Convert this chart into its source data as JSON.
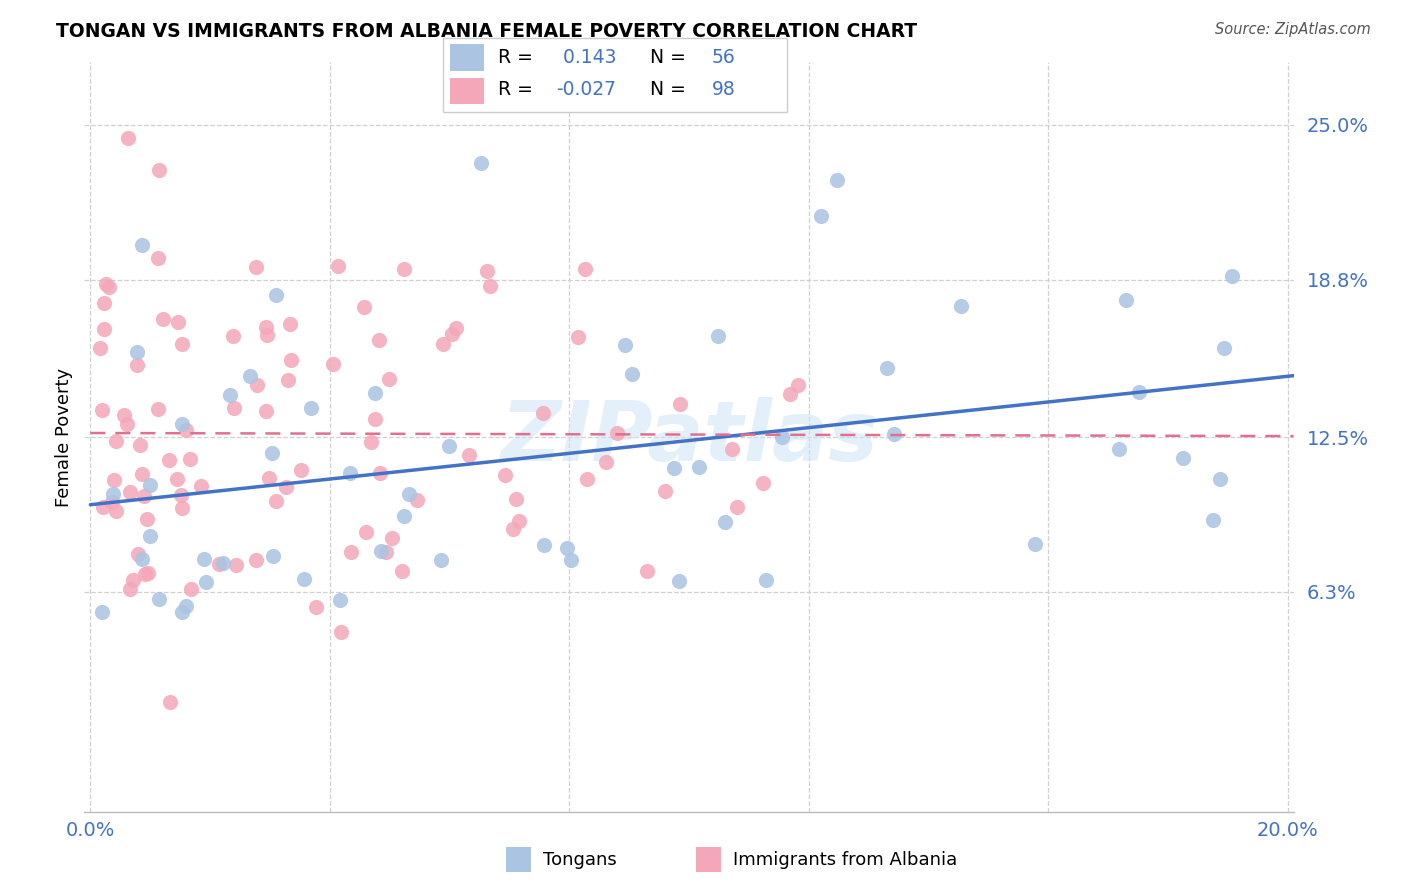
{
  "title": "TONGAN VS IMMIGRANTS FROM ALBANIA FEMALE POVERTY CORRELATION CHART",
  "source": "Source: ZipAtlas.com",
  "ylabel": "Female Poverty",
  "ytick_vals": [
    0.063,
    0.125,
    0.188,
    0.25
  ],
  "ytick_labels": [
    "6.3%",
    "12.5%",
    "18.8%",
    "25.0%"
  ],
  "xlim": [
    -0.001,
    0.201
  ],
  "ylim": [
    -0.025,
    0.275
  ],
  "watermark": "ZIPatlas",
  "legend_r_tongan": " 0.143",
  "legend_n_tongan": "56",
  "legend_r_albania": "-0.027",
  "legend_n_albania": "98",
  "color_tongan": "#aac4e2",
  "color_albania": "#f4a7b9",
  "color_blue": "#4472c4",
  "color_pink_line": "#e07090",
  "background_color": "#ffffff",
  "grid_color": "#d0d0d0",
  "seed_tongan": 42,
  "seed_albania": 77
}
